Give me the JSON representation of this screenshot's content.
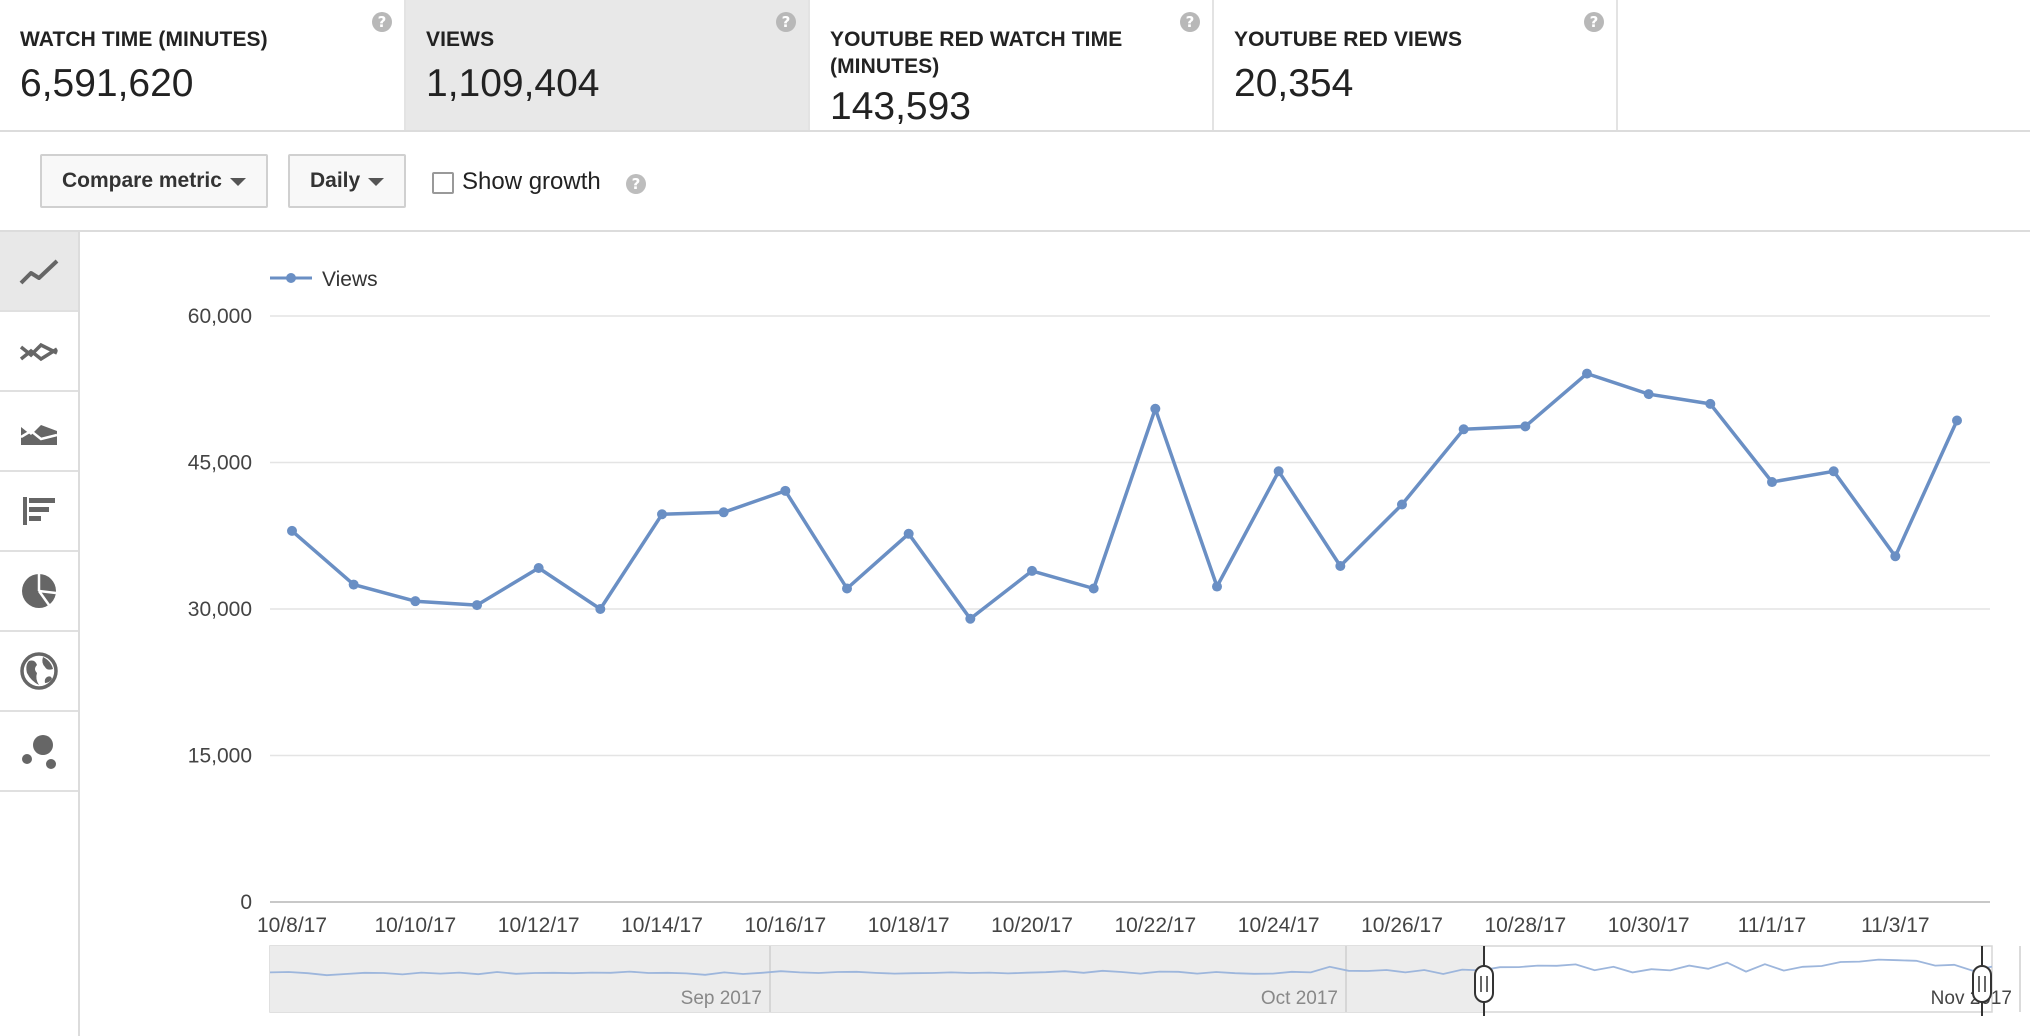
{
  "metrics": [
    {
      "label": "WATCH TIME (MINUTES)",
      "value": "6,591,620",
      "active": false
    },
    {
      "label": "VIEWS",
      "value": "1,109,404",
      "active": true
    },
    {
      "label": "YOUTUBE RED WATCH TIME (MINUTES)",
      "value": "143,593",
      "active": false
    },
    {
      "label": "YOUTUBE RED VIEWS",
      "value": "20,354",
      "active": false
    }
  ],
  "help_glyph": "?",
  "toolbar": {
    "compare_label": "Compare metric",
    "interval_label": "Daily",
    "show_growth_label": "Show growth",
    "show_growth_checked": false
  },
  "rail_icons": [
    "line-chart-icon",
    "multi-line-icon",
    "area-chart-icon",
    "bar-chart-icon",
    "pie-chart-icon",
    "globe-icon",
    "bubble-chart-icon"
  ],
  "colors": {
    "series": "#6a8fc4",
    "grid": "#e4e4e4",
    "nav_bg": "#ececec"
  },
  "chart_data": {
    "type": "line",
    "legend_position": "top-left",
    "grid": true,
    "ylim": [
      0,
      60000
    ],
    "yticks": [
      0,
      15000,
      30000,
      45000,
      60000
    ],
    "ytick_labels": [
      "0",
      "15,000",
      "30,000",
      "45,000",
      "60,000"
    ],
    "x": [
      "10/8/17",
      "10/9/17",
      "10/10/17",
      "10/11/17",
      "10/12/17",
      "10/13/17",
      "10/14/17",
      "10/15/17",
      "10/16/17",
      "10/17/17",
      "10/18/17",
      "10/19/17",
      "10/20/17",
      "10/21/17",
      "10/22/17",
      "10/23/17",
      "10/24/17",
      "10/25/17",
      "10/26/17",
      "10/27/17",
      "10/28/17",
      "10/29/17",
      "10/30/17",
      "10/31/17",
      "11/1/17",
      "11/2/17",
      "11/3/17",
      "11/4/17"
    ],
    "xtick_labels": [
      "10/8/17",
      "10/10/17",
      "10/12/17",
      "10/14/17",
      "10/16/17",
      "10/18/17",
      "10/20/17",
      "10/22/17",
      "10/24/17",
      "10/26/17",
      "10/28/17",
      "10/30/17",
      "11/1/17",
      "11/3/17"
    ],
    "series": [
      {
        "name": "Views",
        "values": [
          38000,
          32500,
          30800,
          30400,
          34200,
          30000,
          39700,
          39900,
          42100,
          32100,
          37700,
          29000,
          33900,
          32100,
          50500,
          32300,
          44100,
          34400,
          40700,
          48400,
          48700,
          54100,
          52000,
          51000,
          43000,
          44100,
          35400,
          49300
        ]
      }
    ],
    "navigator": {
      "labels": [
        "Sep 2017",
        "Oct 2017",
        "Nov 2017"
      ],
      "values": [
        42000,
        42500,
        41000,
        38500,
        40000,
        41500,
        41200,
        39500,
        41800,
        40500,
        41700,
        39800,
        42500,
        40200,
        41200,
        41500,
        41000,
        41800,
        41500,
        43000,
        41200,
        41500,
        40700,
        39000,
        42000,
        40000,
        41500,
        43500,
        42000,
        41200,
        42500,
        42700,
        41400,
        40500,
        41000,
        41300,
        42000,
        41200,
        41800,
        40800,
        41600,
        42200,
        43500,
        41500,
        44000,
        42500,
        40500,
        43000,
        42700,
        40500,
        42500,
        41000,
        40200,
        40500,
        42800,
        42000,
        49000,
        44000,
        43800,
        45000,
        42000,
        45000,
        40000,
        45500,
        44500,
        48500,
        48600,
        50500,
        50200,
        52000,
        44800,
        49000,
        42000,
        46000,
        44500,
        50500,
        46500,
        54300,
        43000,
        52200,
        44300,
        49000,
        50000,
        55000,
        55500,
        58000,
        57300,
        56500,
        50500,
        51500,
        44000,
        49200
      ],
      "window_start_fraction": 0.705,
      "window_end_fraction": 1.0
    }
  }
}
